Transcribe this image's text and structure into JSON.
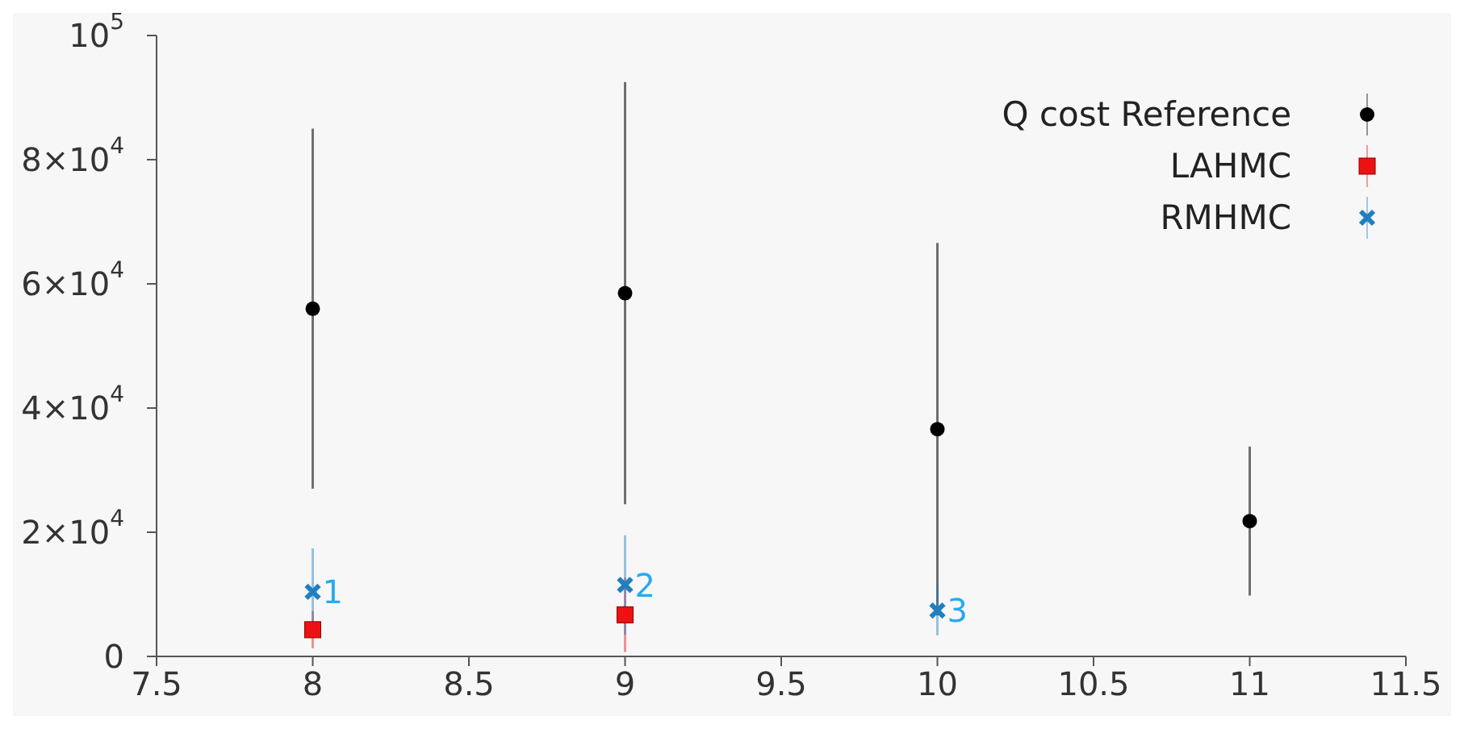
{
  "chart_data": {
    "type": "scatter",
    "x": [
      8,
      9,
      10,
      11
    ],
    "series": [
      {
        "name": "Q cost Reference",
        "color": "#000000",
        "marker": "circle",
        "values": [
          56000,
          58500,
          36600,
          21800
        ],
        "errors": [
          29000,
          34000,
          30000,
          12000
        ]
      },
      {
        "name": "LAHMC",
        "color": "#ee1111",
        "marker": "square",
        "values": [
          4300,
          6700,
          null,
          null
        ],
        "errors": [
          3000,
          6000,
          null,
          null
        ]
      },
      {
        "name": "RMHMC",
        "color": "#1f7fc0",
        "marker": "cross",
        "values": [
          10400,
          11500,
          7400,
          null
        ],
        "errors": [
          7000,
          8000,
          4000,
          null
        ]
      }
    ],
    "annotations": [
      {
        "text": "1",
        "x": 8,
        "y": 10400
      },
      {
        "text": "2",
        "x": 9,
        "y": 11500
      },
      {
        "text": "3",
        "x": 10,
        "y": 7400
      }
    ],
    "xlim": [
      7.5,
      11.5
    ],
    "xticks": [
      7.5,
      8,
      8.5,
      9,
      9.5,
      10,
      10.5,
      11,
      11.5
    ],
    "ylim": [
      0,
      100000
    ],
    "yticks": [
      0,
      {
        "value": 20000,
        "label": "2×10$^{4}$"
      },
      {
        "value": 40000,
        "label": "4×10$^{4}$"
      },
      {
        "value": 60000,
        "label": "6×10$^{4}$"
      },
      {
        "value": 80000,
        "label": "8×10$^{4}$"
      },
      {
        "value": 100000,
        "label": "10$^{5}$"
      }
    ],
    "grid": false,
    "legend": "top right"
  }
}
